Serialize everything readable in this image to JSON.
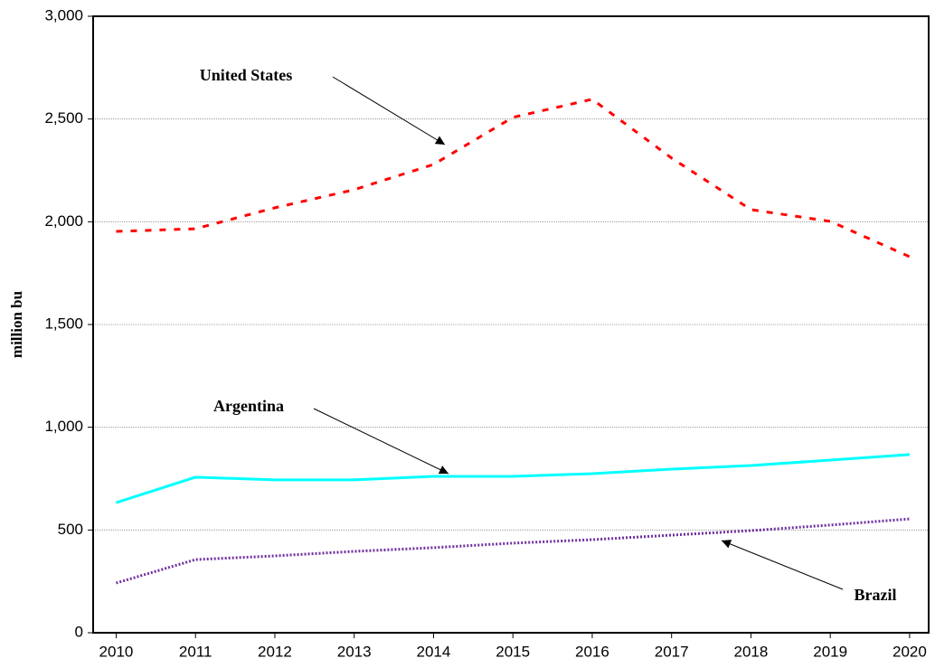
{
  "chart_data": {
    "type": "line",
    "y_label": "million bu",
    "x": [
      2010,
      2011,
      2012,
      2013,
      2014,
      2015,
      2016,
      2017,
      2018,
      2019,
      2020
    ],
    "xlim": [
      2009.71,
      2020.24
    ],
    "xticks": [
      2010,
      2011,
      2012,
      2013,
      2014,
      2015,
      2016,
      2017,
      2018,
      2019,
      2020
    ],
    "ylim": [
      0,
      3000
    ],
    "yticks": [
      0,
      500,
      {
        "value": 1000,
        "label": "1,000"
      },
      {
        "value": 1500,
        "label": "1,500"
      },
      {
        "value": 2000,
        "label": "2,000"
      },
      {
        "value": 2500,
        "label": "2,500"
      },
      {
        "value": 3000,
        "label": "3,000"
      }
    ],
    "grid": true,
    "series": [
      {
        "name": "United States",
        "color": "#ff0000",
        "style": "dashed",
        "values": [
          1953,
          1966,
          2068,
          2156,
          2279,
          2508,
          2596,
          2310,
          2059,
          2002,
          1830
        ]
      },
      {
        "name": "Argentina",
        "color": "#00ffff",
        "style": "solid",
        "values": [
          633,
          757,
          744,
          744,
          761,
          761,
          774,
          796,
          814,
          840,
          867
        ]
      },
      {
        "name": "Brazil",
        "color": "#7030a0",
        "style": "dotted",
        "values": [
          242,
          356,
          374,
          396,
          414,
          436,
          453,
          475,
          497,
          524,
          554
        ]
      }
    ]
  }
}
